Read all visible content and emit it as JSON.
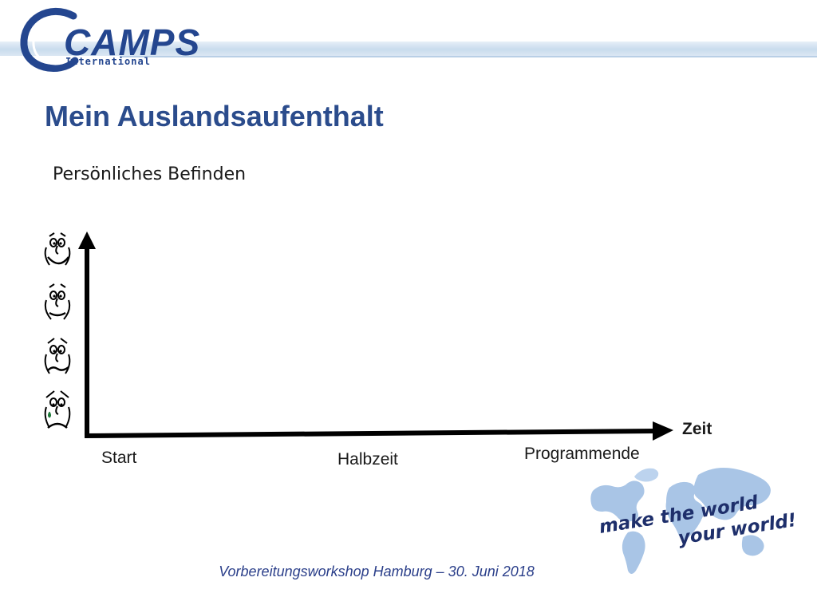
{
  "header": {
    "logo": {
      "wordmark": "CAMPS",
      "subtitle": "International"
    },
    "colors": {
      "brand": "#24468f",
      "band": "#c9dced"
    }
  },
  "slide": {
    "title": "Mein Auslandsaufenthalt",
    "section_label": "Persönliches Befinden"
  },
  "diagram": {
    "y_axis_icons": [
      "happy-face-icon",
      "neutral-face-icon",
      "sad-face-icon",
      "crying-face-icon"
    ],
    "x_axis_title": "Zeit",
    "x_axis_markers": [
      "Start",
      "Halbzeit",
      "Programmende"
    ]
  },
  "branding": {
    "slogan_line1": "make the world",
    "slogan_line2": "your world!",
    "map_icon": "world-map-icon"
  },
  "footer": {
    "text": "Vorbereitungsworkshop Hamburg – 30. Juni 2018"
  }
}
